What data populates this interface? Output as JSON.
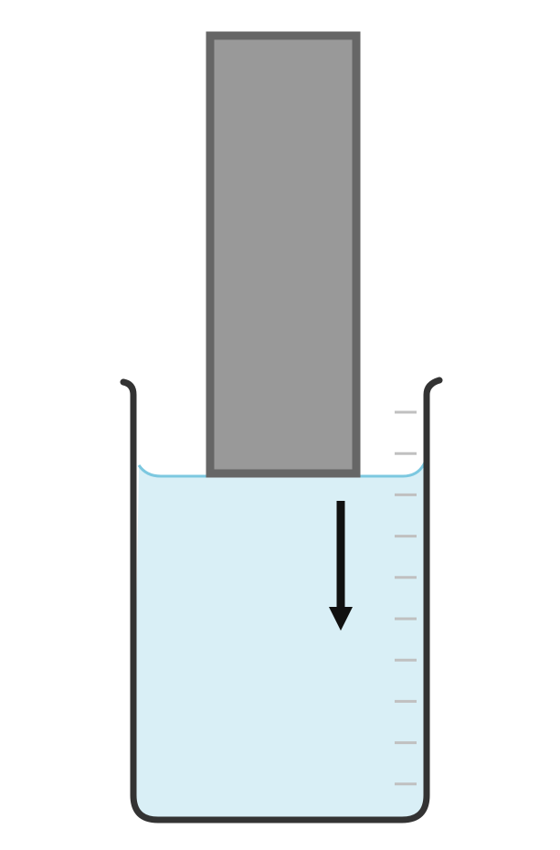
{
  "diagram": {
    "description_free": true,
    "colors": {
      "background": "#ffffff",
      "beaker_outline": "#333333",
      "liquid_fill": "#d9eff6",
      "liquid_surface": "#7cc8e0",
      "block_fill": "#999999",
      "block_border": "#666666",
      "graduation_marks": "#c0c0c0",
      "arrow": "#111111"
    },
    "graduation_count": 10,
    "icons": {
      "beaker": "beaker-icon",
      "block": "rectangular-block",
      "arrow": "down-arrow-icon"
    }
  }
}
